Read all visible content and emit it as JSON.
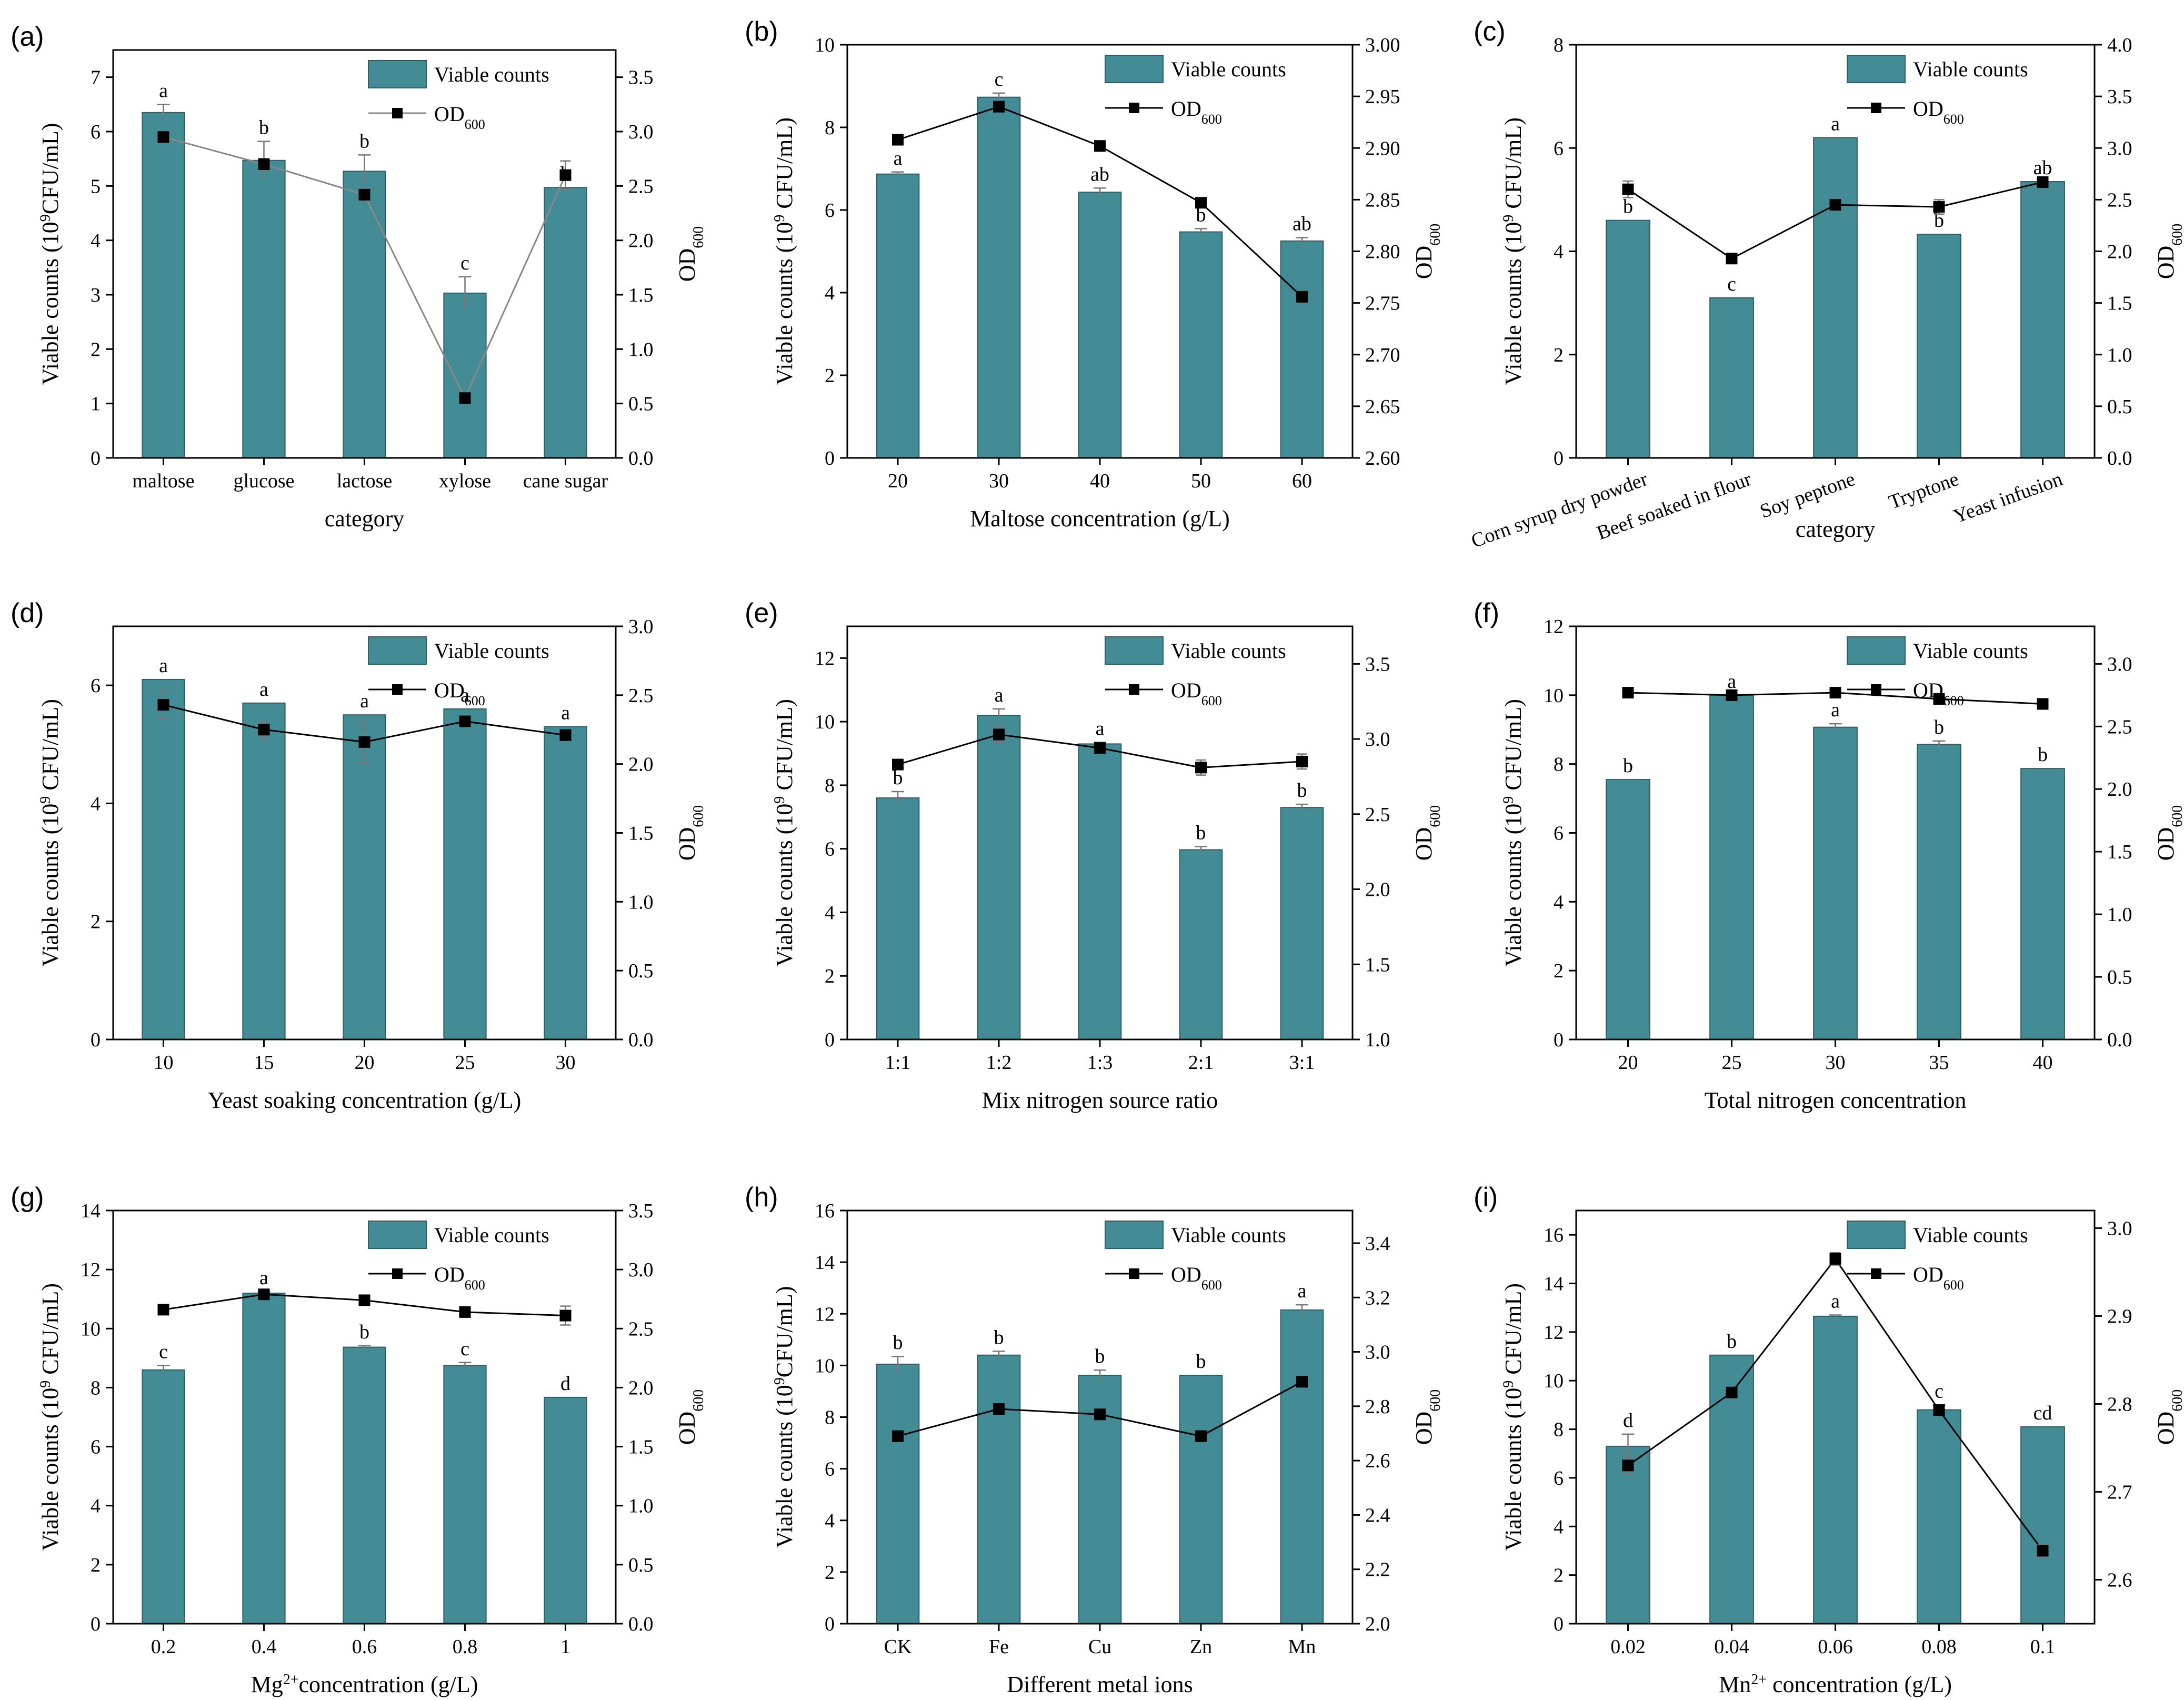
{
  "figure": {
    "bar_color": "#438b95",
    "legend_bar": "Viable counts",
    "legend_line_main": "OD",
    "legend_line_sub": "600"
  },
  "chart_data": [
    {
      "id": "a",
      "tag": "(a)",
      "type": "bar",
      "categories": [
        "maltose",
        "glucose",
        "lactose",
        "xylose",
        "cane sugar"
      ],
      "xlabel": "category",
      "ylabel_pre": "Viable counts (10",
      "ylabel_sup": "9",
      "ylabel_post": "CFU/mL)",
      "yticks": [
        "0",
        "1",
        "2",
        "3",
        "4",
        "5",
        "6",
        "7"
      ],
      "ylim": [
        0,
        7.5
      ],
      "y2label": "OD600",
      "y2ticks": [
        "0.0",
        "0.5",
        "1.0",
        "1.5",
        "2.0",
        "2.5",
        "3.0",
        "3.5"
      ],
      "y2lim": [
        0,
        3.75
      ],
      "line_color": "#888888",
      "viable": [
        6.35,
        5.47,
        5.27,
        3.03,
        4.97
      ],
      "viable_err": [
        0.15,
        0.35,
        0.3,
        0.3,
        0.0
      ],
      "letters": [
        "a",
        "b",
        "b",
        "c",
        "b"
      ],
      "od": [
        2.95,
        2.7,
        2.42,
        0.55,
        2.6
      ],
      "od_err": [
        0.05,
        0.05,
        0.05,
        0.0,
        0.13
      ]
    },
    {
      "id": "b",
      "tag": "(b)",
      "type": "bar",
      "categories": [
        "20",
        "30",
        "40",
        "50",
        "60"
      ],
      "xlabel": "Maltose concentration (g/L)",
      "ylabel_pre": "Viable counts (10",
      "ylabel_sup": "9",
      "ylabel_post": " CFU/mL)",
      "yticks": [
        "0",
        "2",
        "4",
        "6",
        "8",
        "10"
      ],
      "ylim": [
        0,
        10
      ],
      "y2label": "OD600",
      "y2ticks": [
        "2.60",
        "2.65",
        "2.70",
        "2.75",
        "2.80",
        "2.85",
        "2.90",
        "2.95",
        "3.00"
      ],
      "y2lim": [
        2.6,
        3.0
      ],
      "line_color": "#000000",
      "viable": [
        6.87,
        8.73,
        6.43,
        5.47,
        5.25
      ],
      "viable_err": [
        0.05,
        0.1,
        0.1,
        0.08,
        0.08
      ],
      "letters": [
        "a",
        "c",
        "ab",
        "b",
        "ab"
      ],
      "od": [
        2.908,
        2.94,
        2.902,
        2.847,
        2.756
      ],
      "od_err": [
        0.0,
        0.003,
        0.005,
        0.0,
        0.0
      ]
    },
    {
      "id": "c",
      "tag": "(c)",
      "type": "bar",
      "categories": [
        "Corn syrup dry powder",
        "Beef soaked in flour",
        "Soy peptone",
        "Tryptone",
        "Yeast infusion"
      ],
      "xlabel": "category",
      "rotated": true,
      "ylabel_pre": "Viable counts (10",
      "ylabel_sup": "9",
      "ylabel_post": " CFU/mL)",
      "yticks": [
        "0",
        "2",
        "4",
        "6",
        "8"
      ],
      "ylim": [
        0,
        8
      ],
      "y2label": "OD600",
      "y2ticks": [
        "0.0",
        "0.5",
        "1.0",
        "1.5",
        "2.0",
        "2.5",
        "3.0",
        "3.5",
        "4.0"
      ],
      "y2lim": [
        0,
        4
      ],
      "line_color": "#000000",
      "viable": [
        4.6,
        3.1,
        6.2,
        4.33,
        5.35
      ],
      "viable_err": [
        0.0,
        0.0,
        0.0,
        0.0,
        0.0
      ],
      "letters": [
        "b",
        "c",
        "a",
        "b",
        "ab"
      ],
      "od": [
        2.6,
        1.93,
        2.45,
        2.43,
        2.67
      ],
      "od_err": [
        0.08,
        0.0,
        0.0,
        0.07,
        0.0
      ]
    },
    {
      "id": "d",
      "tag": "(d)",
      "type": "bar",
      "categories": [
        "10",
        "15",
        "20",
        "25",
        "30"
      ],
      "xlabel": "Yeast soaking concentration (g/L)",
      "ylabel_pre": "Viable counts (10",
      "ylabel_sup": "9",
      "ylabel_post": " CFU/mL)",
      "yticks": [
        "0",
        "2",
        "4",
        "6"
      ],
      "ylim": [
        0,
        7
      ],
      "y2label": "OD600",
      "y2ticks": [
        "0.0",
        "0.5",
        "1.0",
        "1.5",
        "2.0",
        "2.5",
        "3.0"
      ],
      "y2lim": [
        0,
        3
      ],
      "line_color": "#000000",
      "viable": [
        6.1,
        5.7,
        5.5,
        5.6,
        5.3
      ],
      "viable_err": [
        0.0,
        0.0,
        0.0,
        0.0,
        0.0
      ],
      "letters": [
        "a",
        "a",
        "a",
        "a",
        "a"
      ],
      "od": [
        2.43,
        2.25,
        2.16,
        2.31,
        2.21
      ],
      "od_err": [
        0.1,
        0.06,
        0.15,
        0.0,
        0.0
      ]
    },
    {
      "id": "e",
      "tag": "(e)",
      "type": "bar",
      "categories": [
        "1:1",
        "1:2",
        "1:3",
        "2:1",
        "3:1"
      ],
      "xlabel": "Mix nitrogen source ratio",
      "ylabel_pre": "Viable counts (10",
      "ylabel_sup": "9",
      "ylabel_post": " CFU/mL)",
      "yticks": [
        "0",
        "2",
        "4",
        "6",
        "8",
        "10",
        "12"
      ],
      "ylim": [
        0,
        13
      ],
      "y2label": "OD600",
      "y2ticks": [
        "1.0",
        "1.5",
        "2.0",
        "2.5",
        "3.0",
        "3.5"
      ],
      "y2lim": [
        1.0,
        3.75
      ],
      "line_color": "#000000",
      "viable": [
        7.6,
        10.2,
        9.3,
        5.97,
        7.3
      ],
      "viable_err": [
        0.2,
        0.2,
        0.05,
        0.1,
        0.1
      ],
      "letters": [
        "b",
        "a",
        "a",
        "b",
        "b"
      ],
      "od": [
        2.83,
        3.03,
        2.94,
        2.81,
        2.85
      ],
      "od_err": [
        0.0,
        0.05,
        0.0,
        0.05,
        0.05
      ]
    },
    {
      "id": "f",
      "tag": "(f)",
      "type": "bar",
      "categories": [
        "20",
        "25",
        "30",
        "35",
        "40"
      ],
      "xlabel": "Total nitrogen concentration",
      "ylabel_pre": "Viable counts (10",
      "ylabel_sup": "9",
      "ylabel_post": " CFU/mL)",
      "yticks": [
        "0",
        "2",
        "4",
        "6",
        "8",
        "10",
        "12"
      ],
      "ylim": [
        0,
        12
      ],
      "y2label": "OD600",
      "y2ticks": [
        "0.0",
        "0.5",
        "1.0",
        "1.5",
        "2.0",
        "2.5",
        "3.0"
      ],
      "y2lim": [
        0,
        3.3
      ],
      "line_color": "#000000",
      "viable": [
        7.55,
        10.0,
        9.07,
        8.57,
        7.87
      ],
      "viable_err": [
        0.0,
        0.0,
        0.1,
        0.1,
        0.0
      ],
      "letters": [
        "b",
        "a",
        "a",
        "b",
        "b"
      ],
      "od": [
        2.77,
        2.75,
        2.77,
        2.72,
        2.68
      ],
      "od_err": [
        0.0,
        0.0,
        0.0,
        0.0,
        0.0
      ]
    },
    {
      "id": "g",
      "tag": "(g)",
      "type": "bar",
      "categories": [
        "0.2",
        "0.4",
        "0.6",
        "0.8",
        "1"
      ],
      "xlabel_pre": "Mg",
      "xlabel_sup": "2+",
      "xlabel_post": "concentration (g/L)",
      "ylabel_pre": "Viable counts (10",
      "ylabel_sup": "9",
      "ylabel_post": " CFU/mL)",
      "yticks": [
        "0",
        "2",
        "4",
        "6",
        "8",
        "10",
        "12",
        "14"
      ],
      "ylim": [
        0,
        14
      ],
      "y2label": "OD600",
      "y2ticks": [
        "0.0",
        "0.5",
        "1.0",
        "1.5",
        "2.0",
        "2.5",
        "3.0",
        "3.5"
      ],
      "y2lim": [
        0,
        3.5
      ],
      "line_color": "#000000",
      "viable": [
        8.6,
        11.2,
        9.37,
        8.75,
        7.67
      ],
      "viable_err": [
        0.15,
        0.05,
        0.05,
        0.1,
        0.0
      ],
      "letters": [
        "c",
        "a",
        "b",
        "c",
        "d"
      ],
      "od": [
        2.66,
        2.79,
        2.74,
        2.64,
        2.61
      ],
      "od_err": [
        0.0,
        0.0,
        0.0,
        0.0,
        0.08
      ]
    },
    {
      "id": "h",
      "tag": "(h)",
      "type": "bar",
      "categories": [
        "CK",
        "Fe",
        "Cu",
        "Zn",
        "Mn"
      ],
      "xlabel": "Different metal ions",
      "ylabel_pre": "Viable counts (10",
      "ylabel_sup": "9",
      "ylabel_post": "CFU/mL)",
      "yticks": [
        "0",
        "2",
        "4",
        "6",
        "8",
        "10",
        "12",
        "14",
        "16"
      ],
      "ylim": [
        0,
        16
      ],
      "y2label": "OD600",
      "y2ticks": [
        "2.0",
        "2.2",
        "2.4",
        "2.6",
        "2.8",
        "3.0",
        "3.2",
        "3.4"
      ],
      "y2lim": [
        2.0,
        3.52
      ],
      "line_color": "#000000",
      "viable": [
        10.05,
        10.4,
        9.62,
        9.62,
        12.15
      ],
      "viable_err": [
        0.3,
        0.15,
        0.2,
        0.0,
        0.2
      ],
      "letters": [
        "b",
        "b",
        "b",
        "b",
        "a"
      ],
      "od": [
        2.69,
        2.79,
        2.77,
        2.69,
        2.89
      ],
      "od_err": [
        0.0,
        0.0,
        0.0,
        0.0,
        0.0
      ]
    },
    {
      "id": "i",
      "tag": "(i)",
      "type": "bar",
      "categories": [
        "0.02",
        "0.04",
        "0.06",
        "0.08",
        "0.1"
      ],
      "xlabel_pre": "Mn",
      "xlabel_sup": "2+",
      "xlabel_post": " concentration (g/L)",
      "ylabel_pre": "Viable counts (10",
      "ylabel_sup": "9",
      "ylabel_post": " CFU/mL)",
      "yticks": [
        "0",
        "2",
        "4",
        "6",
        "8",
        "10",
        "12",
        "14",
        "16"
      ],
      "ylim": [
        0,
        17
      ],
      "y2label": "OD600",
      "y2ticks": [
        "2.6",
        "2.7",
        "2.8",
        "2.9",
        "3.0"
      ],
      "y2lim": [
        2.55,
        3.02
      ],
      "line_color": "#000000",
      "viable": [
        7.3,
        11.05,
        12.65,
        8.8,
        8.1
      ],
      "viable_err": [
        0.5,
        0.0,
        0.05,
        0.2,
        0.0
      ],
      "letters": [
        "d",
        "b",
        "a",
        "c",
        "cd"
      ],
      "od": [
        2.73,
        2.813,
        2.965,
        2.793,
        2.633
      ],
      "od_err": [
        0.01,
        0.0,
        0.007,
        0.0,
        0.007
      ]
    }
  ]
}
